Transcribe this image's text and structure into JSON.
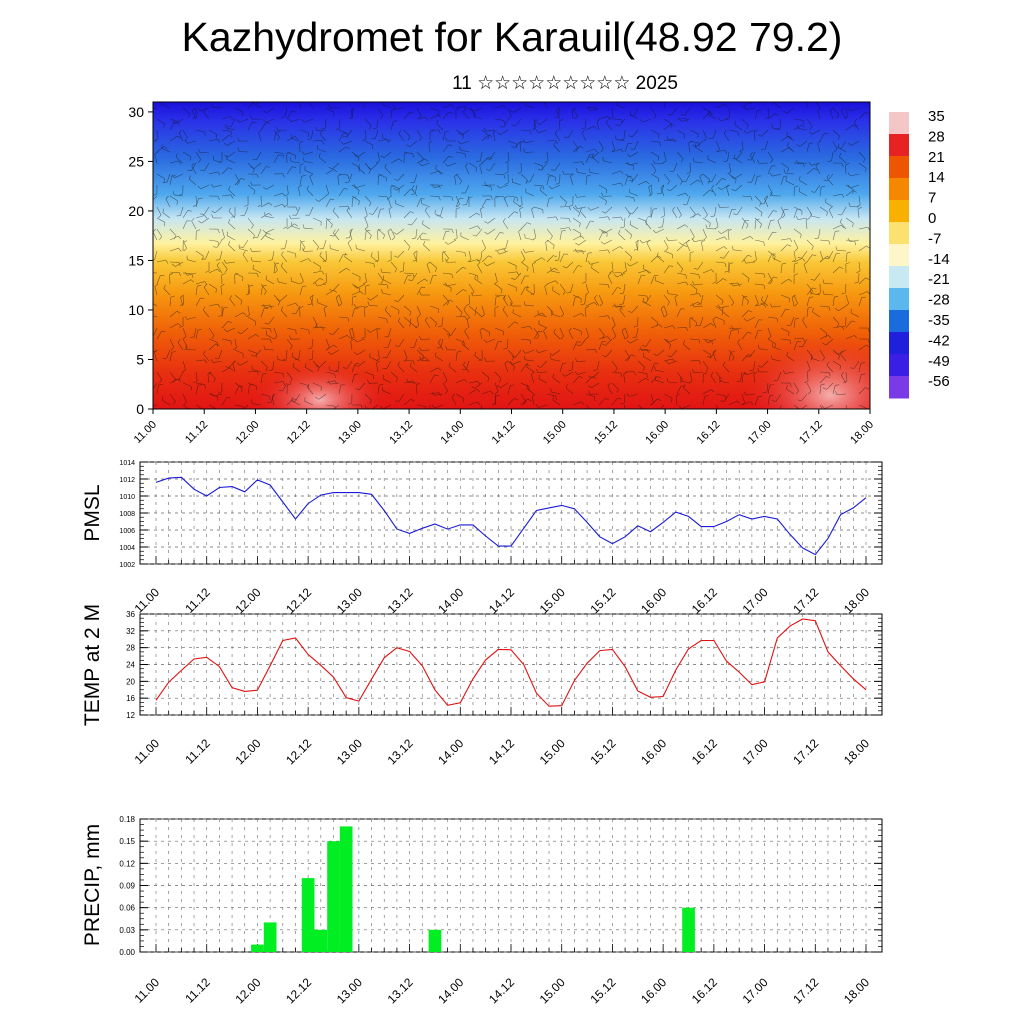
{
  "title": "Kazhydromet for Karauil(48.92 79.2)",
  "subtitle": "11 ☆☆☆☆☆☆☆☆☆ 2025",
  "time_labels": [
    "11.00",
    "11.12",
    "12.00",
    "12.12",
    "13.00",
    "13.12",
    "14.00",
    "14.12",
    "15.00",
    "15.12",
    "16.00",
    "16.12",
    "17.00",
    "17.12",
    "18.00"
  ],
  "colors": {
    "pmsl_line": "#1a1ad6",
    "temp_line": "#e01010",
    "precip_bar": "#00ee22",
    "grid": "#666666"
  },
  "chart_data": [
    {
      "type": "heatmap",
      "ylim": [
        0,
        31
      ],
      "yticks": [
        0,
        5,
        10,
        15,
        20,
        25,
        30
      ],
      "colorbar_labels": [
        "35",
        "28",
        "21",
        "14",
        "7",
        "0",
        "-7",
        "-14",
        "-21",
        "-28",
        "-35",
        "-42",
        "-49",
        "-56"
      ],
      "colorscale": [
        "#f4c6c6",
        "#e62222",
        "#ee5500",
        "#f58800",
        "#f9b000",
        "#fce070",
        "#fef6c8",
        "#c8e8f2",
        "#5ab8ee",
        "#1a6cde",
        "#2020dc",
        "#3a1ee6",
        "#7a3ae8"
      ],
      "overlay": "wind barbs"
    },
    {
      "type": "line",
      "ylabel": "PMSL",
      "ylim": [
        1002,
        1014
      ],
      "yticks": [
        1002,
        1004,
        1006,
        1008,
        1010,
        1012,
        1014
      ],
      "x": [
        0,
        3,
        6,
        9,
        12,
        15,
        18,
        21,
        24,
        27,
        30,
        33,
        36,
        39,
        42,
        45,
        48,
        51,
        54,
        57,
        60,
        63,
        66,
        69,
        72,
        75,
        78,
        81,
        84,
        87,
        90,
        93,
        96,
        99,
        102,
        105,
        108,
        111,
        114,
        117,
        120,
        123,
        126,
        129,
        132,
        135,
        138,
        141,
        144,
        147,
        150,
        153,
        156,
        159,
        162,
        165,
        168
      ],
      "values": [
        1011.6,
        1012.1,
        1012.2,
        1010.8,
        1010.0,
        1011.0,
        1011.1,
        1010.5,
        1011.9,
        1011.3,
        1009.3,
        1007.3,
        1009.1,
        1010.1,
        1010.4,
        1010.4,
        1010.4,
        1010.2,
        1008.3,
        1006.1,
        1005.6,
        1006.2,
        1006.7,
        1006.1,
        1006.6,
        1006.6,
        1005.3,
        1004.1,
        1004.1,
        1006.2,
        1008.3,
        1008.6,
        1008.9,
        1008.5,
        1006.9,
        1005.2,
        1004.4,
        1005.2,
        1006.5,
        1005.8,
        1006.9,
        1008.1,
        1007.6,
        1006.4,
        1006.4,
        1007.0,
        1007.8,
        1007.3,
        1007.6,
        1007.3,
        1005.5,
        1003.9,
        1003.1,
        1005.0,
        1007.8,
        1008.6,
        1009.8
      ]
    },
    {
      "type": "line",
      "ylabel": "TEMP at 2 M",
      "ylim": [
        12,
        36
      ],
      "yticks": [
        12,
        16,
        20,
        24,
        28,
        32,
        36
      ],
      "x": [
        0,
        3,
        6,
        9,
        12,
        15,
        18,
        21,
        24,
        27,
        30,
        33,
        36,
        39,
        42,
        45,
        48,
        51,
        54,
        57,
        60,
        63,
        66,
        69,
        72,
        75,
        78,
        81,
        84,
        87,
        90,
        93,
        96,
        99,
        102,
        105,
        108,
        111,
        114,
        117,
        120,
        123,
        126,
        129,
        132,
        135,
        138,
        141,
        144,
        147,
        150,
        153,
        156,
        159,
        162,
        165,
        168
      ],
      "values": [
        15.5,
        19.8,
        22.6,
        25.3,
        25.7,
        23.5,
        18.5,
        17.6,
        17.9,
        23.7,
        29.7,
        30.3,
        26.4,
        23.8,
        21.0,
        16.1,
        15.3,
        20.5,
        25.6,
        28.0,
        27.1,
        23.7,
        18.0,
        14.3,
        14.9,
        20.6,
        25.1,
        27.6,
        27.5,
        24.0,
        17.2,
        14.1,
        14.2,
        20.2,
        24.3,
        27.3,
        27.6,
        23.5,
        17.7,
        16.2,
        16.4,
        22.7,
        27.7,
        29.7,
        29.7,
        24.8,
        22.2,
        19.2,
        19.9,
        30.3,
        33.1,
        34.8,
        34.4,
        27.0,
        23.7,
        20.6,
        18.0
      ]
    },
    {
      "type": "bar",
      "ylabel": "PRECIP, mm",
      "ylim": [
        0,
        0.18
      ],
      "ytick_labels": [
        "0.00",
        "0.03",
        "0.06",
        "0.09",
        "0.12",
        "0.15",
        "0.18"
      ],
      "x": [
        24,
        27,
        36,
        39,
        42,
        45,
        66,
        126
      ],
      "values": [
        0.01,
        0.04,
        0.1,
        0.03,
        0.15,
        0.17,
        0.03,
        0.06
      ]
    }
  ]
}
